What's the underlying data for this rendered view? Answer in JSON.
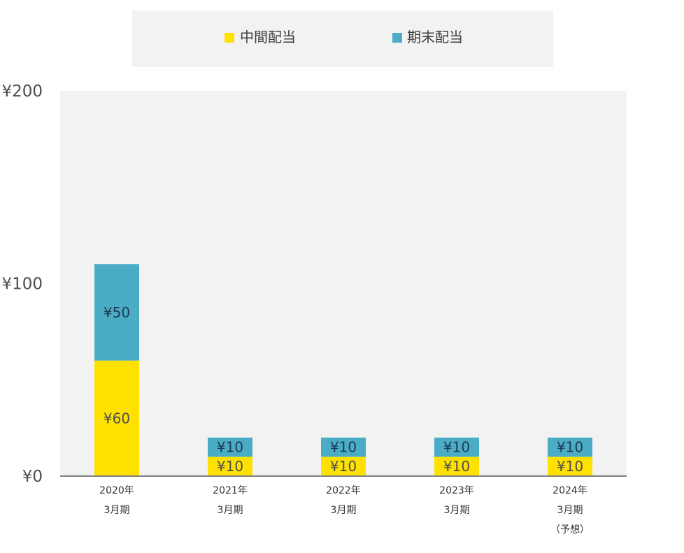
{
  "chart_data": {
    "type": "bar",
    "stacked": true,
    "categories": [
      [
        "2020年",
        "3月期"
      ],
      [
        "2021年",
        "3月期"
      ],
      [
        "2022年",
        "3月期"
      ],
      [
        "2023年",
        "3月期"
      ],
      [
        "2024年",
        "3月期",
        "（予想）"
      ]
    ],
    "series": [
      {
        "name": "中間配当",
        "color": "#ffe100",
        "values": [
          60,
          10,
          10,
          10,
          10
        ],
        "labels": [
          "¥60",
          "¥10",
          "¥10",
          "¥10",
          "¥10"
        ]
      },
      {
        "name": "期末配当",
        "color": "#4bacc6",
        "values": [
          50,
          10,
          10,
          10,
          10
        ],
        "labels": [
          "¥50",
          "¥10",
          "¥10",
          "¥10",
          "¥10"
        ]
      }
    ],
    "ylim": [
      0,
      200
    ],
    "y_ticks": [
      0,
      100,
      200
    ],
    "y_tick_labels": [
      "¥0",
      "¥100",
      "¥200"
    ],
    "grid": false,
    "legend_position": "top-center",
    "plot_background": "#f2f2f2",
    "xlabel": "",
    "ylabel": "",
    "title": ""
  }
}
